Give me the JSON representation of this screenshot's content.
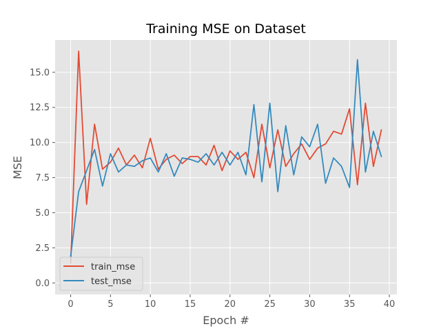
{
  "chart_data": {
    "type": "line",
    "title": "Training MSE on Dataset",
    "xlabel": "Epoch #",
    "ylabel": "MSE",
    "xlim": [
      -1.95,
      40.95
    ],
    "ylim": [
      -0.82,
      17.3
    ],
    "xticks": [
      0,
      5,
      10,
      15,
      20,
      25,
      30,
      35,
      40
    ],
    "xtick_labels": [
      "0",
      "5",
      "10",
      "15",
      "20",
      "25",
      "30",
      "35",
      "40"
    ],
    "yticks": [
      0.0,
      2.5,
      5.0,
      7.5,
      10.0,
      12.5,
      15.0
    ],
    "ytick_labels": [
      "0.0",
      "2.5",
      "5.0",
      "7.5",
      "10.0",
      "12.5",
      "15.0"
    ],
    "grid": true,
    "legend_position": "lower-left",
    "background": "#e5e5e5",
    "x": [
      0,
      1,
      2,
      3,
      4,
      5,
      6,
      7,
      8,
      9,
      10,
      11,
      12,
      13,
      14,
      15,
      16,
      17,
      18,
      19,
      20,
      21,
      22,
      23,
      24,
      25,
      26,
      27,
      28,
      29,
      30,
      31,
      32,
      33,
      34,
      35,
      36,
      37,
      38,
      39
    ],
    "series": [
      {
        "name": "train_mse",
        "color": "#e24a33",
        "values": [
          1.4,
          16.5,
          5.6,
          11.3,
          8.1,
          8.6,
          9.6,
          8.4,
          9.1,
          8.2,
          10.3,
          8.1,
          8.8,
          9.1,
          8.5,
          9.0,
          9.0,
          8.4,
          9.8,
          8.0,
          9.4,
          8.8,
          9.3,
          7.5,
          11.3,
          8.2,
          10.9,
          8.3,
          9.2,
          9.9,
          8.8,
          9.6,
          9.9,
          10.8,
          10.6,
          12.4,
          7.0,
          12.8,
          8.3,
          10.9
        ]
      },
      {
        "name": "test_mse",
        "color": "#348abd",
        "values": [
          1.9,
          6.5,
          8.0,
          9.5,
          6.9,
          9.2,
          7.9,
          8.4,
          8.3,
          8.7,
          8.9,
          7.9,
          9.2,
          7.6,
          8.9,
          8.8,
          8.6,
          9.2,
          8.4,
          9.3,
          8.4,
          9.3,
          7.7,
          12.7,
          7.2,
          12.8,
          6.5,
          11.2,
          7.7,
          10.4,
          9.7,
          11.3,
          7.1,
          8.9,
          8.3,
          6.8,
          15.9,
          7.9,
          10.8,
          9.0
        ]
      }
    ]
  }
}
